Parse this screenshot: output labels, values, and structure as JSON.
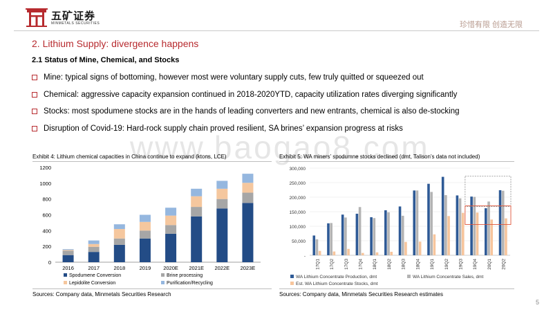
{
  "header": {
    "brand_cn": "五矿证券",
    "brand_en": "MINMETALS SECURITIES",
    "slogan": "珍惜有限 创造无限",
    "logo_icon": "gate-logo-icon"
  },
  "section_title": "2.  Lithium Supply: divergence happens",
  "sub_title": "2.1 Status of Mine, Chemical, and Stocks",
  "bullets": [
    "Mine: typical signs of bottoming, however most were voluntary supply cuts, few truly quitted or squeezed out",
    "Chemical: aggressive capacity expansion continued in 2018-2020YTD, capacity utilization rates diverging significantly",
    "Stocks: most spodumene stocks are in the hands of leading converters and new entrants, chemical is also de-stocking",
    "Disruption of Covid-19: Hard-rock supply chain proved resilient, SA brines’ expansion progress at risks"
  ],
  "watermark": "www.baogao8.com",
  "page_number": "5",
  "colors": {
    "accent_red": "#b72a2e",
    "spodumene": "#234c86",
    "brine": "#a6a6a6",
    "lepidolite": "#f5c79e",
    "purification": "#95b7df",
    "wa_production": "#2e5a96",
    "wa_sales": "#b4b4b4",
    "stocks": "#f7c59c"
  },
  "chart_data": [
    {
      "type": "bar",
      "stacked": true,
      "exhibit_title": "Exhibit 4: Lithium chemical capacities in China continue to expand (ktons, LCE)",
      "source": "Sources: Company data, Minmetals Securities Research",
      "categories": [
        "2016",
        "2017",
        "2018",
        "2019",
        "2020E",
        "2021E",
        "2022E",
        "2023E"
      ],
      "series": [
        {
          "name": "Spodumene Conversion",
          "color": "#234c86",
          "values": [
            90,
            130,
            220,
            300,
            360,
            580,
            680,
            750
          ]
        },
        {
          "name": "Brine processing",
          "color": "#a6a6a6",
          "values": [
            55,
            65,
            80,
            100,
            110,
            120,
            120,
            130
          ]
        },
        {
          "name": "Lepidolite Conversion",
          "color": "#f5c79e",
          "values": [
            10,
            35,
            120,
            110,
            120,
            135,
            130,
            125
          ]
        },
        {
          "name": "Purification/Recycling",
          "color": "#95b7df",
          "values": [
            10,
            45,
            60,
            90,
            100,
            95,
            100,
            115
          ]
        }
      ],
      "ylim": [
        0,
        1200
      ],
      "yticks": [
        "0",
        "200",
        "400",
        "600",
        "800",
        "1000",
        "1200"
      ],
      "grid": false,
      "legend": "bottom"
    },
    {
      "type": "bar",
      "exhibit_title": "Exhibit 5: WA miners’ spodumne stocks declined (dmt, Talison’s data not included)",
      "source": "Sources: Company data, Minmetals Securities Research estimates",
      "categories": [
        "17Q1",
        "17Q2",
        "17Q3",
        "17Q4",
        "18Q1",
        "18Q2",
        "18Q3",
        "18Q4",
        "19Q1",
        "19Q2",
        "19Q3",
        "19Q4",
        "20Q1",
        "20Q2"
      ],
      "series": [
        {
          "name": "WA Lithium Concentrate Production, dmt",
          "color": "#2e5a96",
          "values": [
            68000,
            110000,
            140000,
            143000,
            131000,
            155000,
            168000,
            223000,
            246000,
            270000,
            206000,
            202000,
            162000,
            224000
          ]
        },
        {
          "name": "WA Lithium Concentrate Sales, dmt",
          "color": "#b4b4b4",
          "values": [
            55000,
            111000,
            130000,
            166000,
            128000,
            148000,
            136000,
            223000,
            218000,
            207000,
            196000,
            201000,
            185000,
            222000
          ]
        },
        {
          "name": "Est. WA Lithium Concentrate Stocks, dmt",
          "color": "#f7c59c",
          "values": [
            15000,
            13000,
            22000,
            8000,
            10000,
            12000,
            46000,
            47000,
            72000,
            135000,
            146000,
            147000,
            123000,
            127000
          ]
        }
      ],
      "ylim": [
        0,
        300000
      ],
      "yticks": [
        "-",
        "50,000",
        "100,000",
        "150,000",
        "200,000",
        "250,000",
        "300,000"
      ],
      "grid": true,
      "legend": "bottom"
    }
  ]
}
